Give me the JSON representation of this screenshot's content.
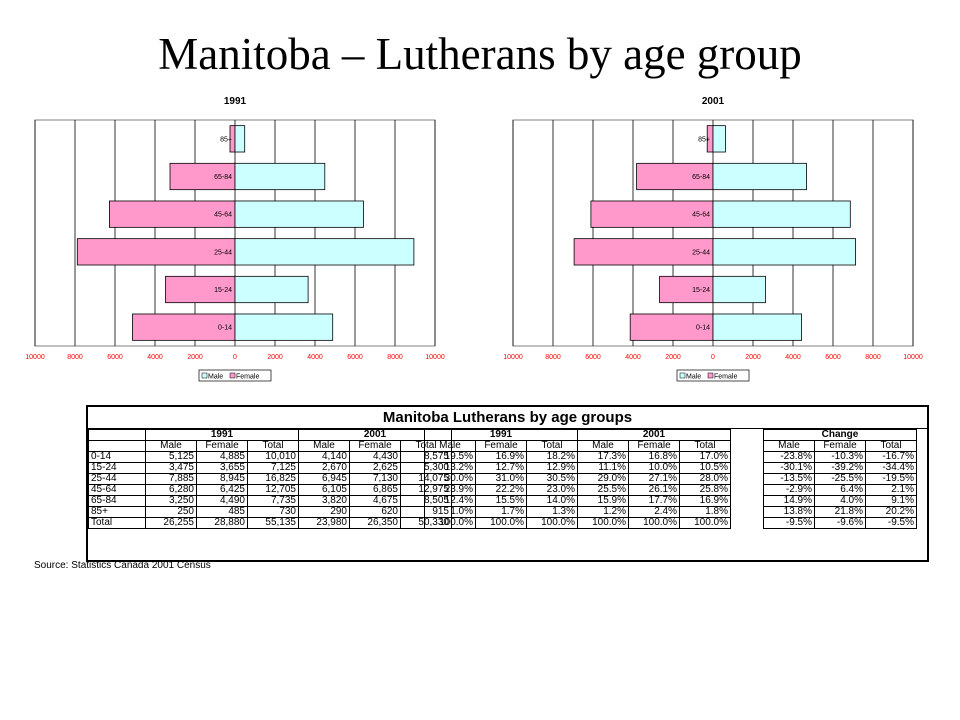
{
  "slide": {
    "title": "Manitoba – Lutherans by age group"
  },
  "colors": {
    "male": "#ff99cc",
    "female": "#ccffff",
    "grid": "#000000",
    "axis_labels": "#ff0000"
  },
  "chart_data": [
    {
      "type": "bar",
      "title": "1991",
      "categories": [
        "0-14",
        "15-24",
        "25-44",
        "45-64",
        "65-84",
        "85+"
      ],
      "series": [
        {
          "name": "Male",
          "values": [
            5125,
            3475,
            7885,
            6280,
            3250,
            250
          ]
        },
        {
          "name": "Female",
          "values": [
            4885,
            3655,
            8945,
            6425,
            4490,
            485
          ]
        }
      ],
      "xticks": [
        "10000",
        "8000",
        "6000",
        "4000",
        "2000",
        "0",
        "2000",
        "4000",
        "6000",
        "8000",
        "10000"
      ],
      "xlim": [
        -10000,
        10000
      ],
      "grid": true,
      "legend": [
        "Male",
        "Female"
      ]
    },
    {
      "type": "bar",
      "title": "2001",
      "categories": [
        "0-14",
        "15-24",
        "25-44",
        "45-64",
        "65-84",
        "85+"
      ],
      "series": [
        {
          "name": "Male",
          "values": [
            4140,
            2670,
            6945,
            6105,
            3820,
            290
          ]
        },
        {
          "name": "Female",
          "values": [
            4430,
            2625,
            7130,
            6865,
            4675,
            620
          ]
        }
      ],
      "xticks": [
        "10000",
        "8000",
        "6000",
        "4000",
        "2000",
        "0",
        "2000",
        "4000",
        "6000",
        "8000",
        "10000"
      ],
      "xlim": [
        -10000,
        10000
      ],
      "grid": true,
      "legend": [
        "Male",
        "Female"
      ]
    }
  ],
  "table": {
    "title": "Manitoba Lutherans by age groups",
    "group_headers": [
      "1991",
      "2001",
      "1991",
      "2001",
      "Change"
    ],
    "col_headers": [
      "Male",
      "Female",
      "Total"
    ],
    "rows": [
      {
        "label": "0-14",
        "c1991": [
          "5,125",
          "4,885",
          "10,010"
        ],
        "c2001": [
          "4,140",
          "4,430",
          "8,575"
        ],
        "p1991": [
          "19.5%",
          "16.9%",
          "18.2%"
        ],
        "p2001": [
          "17.3%",
          "16.8%",
          "17.0%"
        ],
        "change": [
          "-23.8%",
          "-10.3%",
          "-16.7%"
        ]
      },
      {
        "label": "15-24",
        "c1991": [
          "3,475",
          "3,655",
          "7,125"
        ],
        "c2001": [
          "2,670",
          "2,625",
          "5,300"
        ],
        "p1991": [
          "13.2%",
          "12.7%",
          "12.9%"
        ],
        "p2001": [
          "11.1%",
          "10.0%",
          "10.5%"
        ],
        "change": [
          "-30.1%",
          "-39.2%",
          "-34.4%"
        ]
      },
      {
        "label": "25-44",
        "c1991": [
          "7,885",
          "8,945",
          "16,825"
        ],
        "c2001": [
          "6,945",
          "7,130",
          "14,075"
        ],
        "p1991": [
          "30.0%",
          "31.0%",
          "30.5%"
        ],
        "p2001": [
          "29.0%",
          "27.1%",
          "28.0%"
        ],
        "change": [
          "-13.5%",
          "-25.5%",
          "-19.5%"
        ]
      },
      {
        "label": "45-64",
        "c1991": [
          "6,280",
          "6,425",
          "12,705"
        ],
        "c2001": [
          "6,105",
          "6,865",
          "12,975"
        ],
        "p1991": [
          "23.9%",
          "22.2%",
          "23.0%"
        ],
        "p2001": [
          "25.5%",
          "26.1%",
          "25.8%"
        ],
        "change": [
          "-2.9%",
          "6.4%",
          "2.1%"
        ]
      },
      {
        "label": "65-84",
        "c1991": [
          "3,250",
          "4,490",
          "7,735"
        ],
        "c2001": [
          "3,820",
          "4,675",
          "8,505"
        ],
        "p1991": [
          "12.4%",
          "15.5%",
          "14.0%"
        ],
        "p2001": [
          "15.9%",
          "17.7%",
          "16.9%"
        ],
        "change": [
          "14.9%",
          "4.0%",
          "9.1%"
        ]
      },
      {
        "label": "85+",
        "c1991": [
          "250",
          "485",
          "730"
        ],
        "c2001": [
          "290",
          "620",
          "915"
        ],
        "p1991": [
          "1.0%",
          "1.7%",
          "1.3%"
        ],
        "p2001": [
          "1.2%",
          "2.4%",
          "1.8%"
        ],
        "change": [
          "13.8%",
          "21.8%",
          "20.2%"
        ]
      },
      {
        "label": "Total",
        "c1991": [
          "26,255",
          "28,880",
          "55,135"
        ],
        "c2001": [
          "23,980",
          "26,350",
          "50,330"
        ],
        "p1991": [
          "100.0%",
          "100.0%",
          "100.0%"
        ],
        "p2001": [
          "100.0%",
          "100.0%",
          "100.0%"
        ],
        "change": [
          "-9.5%",
          "-9.6%",
          "-9.5%"
        ]
      }
    ]
  },
  "source": "Source: Statistics Canada 2001 Census"
}
